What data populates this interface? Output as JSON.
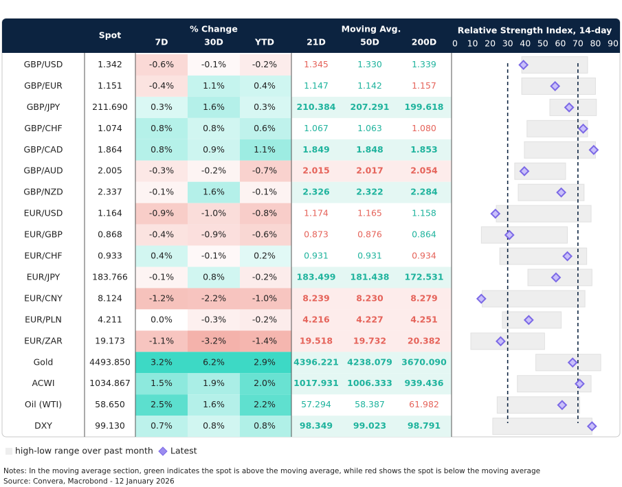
{
  "header": {
    "spot": "Spot",
    "pct_change": "% Change",
    "moving_avg": "Moving Avg.",
    "rsi": "Relative Strength Index, 14-day",
    "columns": [
      "7D",
      "30D",
      "YTD",
      "21D",
      "50D",
      "200D"
    ]
  },
  "rsi_axis": {
    "lim": [
      0,
      90
    ],
    "ticks": [
      0,
      10,
      20,
      30,
      40,
      50,
      60,
      70,
      80,
      90
    ],
    "thresholds": [
      30,
      70
    ]
  },
  "rows": [
    {
      "pair": "GBP/USD",
      "spot": "1.342",
      "change": [
        "-0.6%",
        "-0.1%",
        "-0.2%"
      ],
      "moving_avg": [
        "1.345",
        "1.330",
        "1.339"
      ],
      "rsi_low": 38,
      "rsi_high": 75.5,
      "rsi_latest": 39
    },
    {
      "pair": "GBP/EUR",
      "spot": "1.151",
      "change": [
        "-0.4%",
        "1.1%",
        "0.4%"
      ],
      "moving_avg": [
        "1.147",
        "1.142",
        "1.157"
      ],
      "rsi_low": 38,
      "rsi_high": 80,
      "rsi_latest": 57
    },
    {
      "pair": "GBP/JPY",
      "spot": "211.690",
      "change": [
        "0.3%",
        "1.6%",
        "0.3%"
      ],
      "moving_avg": [
        "210.384",
        "207.291",
        "199.618"
      ],
      "rsi_low": 54,
      "rsi_high": 80.5,
      "rsi_latest": 65
    },
    {
      "pair": "GBP/CHF",
      "spot": "1.074",
      "change": [
        "0.8%",
        "0.8%",
        "0.6%"
      ],
      "moving_avg": [
        "1.067",
        "1.063",
        "1.080"
      ],
      "rsi_low": 41,
      "rsi_high": 75.5,
      "rsi_latest": 73
    },
    {
      "pair": "GBP/CAD",
      "spot": "1.864",
      "change": [
        "0.8%",
        "0.9%",
        "1.1%"
      ],
      "moving_avg": [
        "1.849",
        "1.848",
        "1.853"
      ],
      "rsi_low": 39.5,
      "rsi_high": 80,
      "rsi_latest": 79
    },
    {
      "pair": "GBP/AUD",
      "spot": "2.005",
      "change": [
        "-0.3%",
        "-0.2%",
        "-0.7%"
      ],
      "moving_avg": [
        "2.015",
        "2.017",
        "2.054"
      ],
      "rsi_low": 34,
      "rsi_high": 63,
      "rsi_latest": 39.5
    },
    {
      "pair": "GBP/NZD",
      "spot": "2.337",
      "change": [
        "-0.1%",
        "1.6%",
        "-0.1%"
      ],
      "moving_avg": [
        "2.326",
        "2.322",
        "2.284"
      ],
      "rsi_low": 36,
      "rsi_high": 73.5,
      "rsi_latest": 60.5
    },
    {
      "pair": "EUR/USD",
      "spot": "1.164",
      "change": [
        "-0.9%",
        "-1.0%",
        "-0.8%"
      ],
      "moving_avg": [
        "1.174",
        "1.165",
        "1.158"
      ],
      "rsi_low": 23.5,
      "rsi_high": 77.5,
      "rsi_latest": 23
    },
    {
      "pair": "EUR/GBP",
      "spot": "0.868",
      "change": [
        "-0.4%",
        "-0.9%",
        "-0.6%"
      ],
      "moving_avg": [
        "0.873",
        "0.876",
        "0.864"
      ],
      "rsi_low": 15,
      "rsi_high": 64,
      "rsi_latest": 31
    },
    {
      "pair": "EUR/CHF",
      "spot": "0.933",
      "change": [
        "0.4%",
        "-0.1%",
        "0.2%"
      ],
      "moving_avg": [
        "0.931",
        "0.931",
        "0.934"
      ],
      "rsi_low": 25.5,
      "rsi_high": 75,
      "rsi_latest": 64
    },
    {
      "pair": "EUR/JPY",
      "spot": "183.766",
      "change": [
        "-0.1%",
        "0.8%",
        "-0.2%"
      ],
      "moving_avg": [
        "183.499",
        "181.438",
        "172.531"
      ],
      "rsi_low": 41.5,
      "rsi_high": 78,
      "rsi_latest": 57.5
    },
    {
      "pair": "EUR/CNY",
      "spot": "8.124",
      "change": [
        "-1.2%",
        "-2.2%",
        "-1.0%"
      ],
      "moving_avg": [
        "8.239",
        "8.230",
        "8.279"
      ],
      "rsi_low": 15.5,
      "rsi_high": 74,
      "rsi_latest": 15
    },
    {
      "pair": "EUR/PLN",
      "spot": "4.211",
      "change": [
        "0.0%",
        "-0.3%",
        "-0.2%"
      ],
      "moving_avg": [
        "4.216",
        "4.227",
        "4.251"
      ],
      "rsi_low": 27,
      "rsi_high": 60.5,
      "rsi_latest": 42
    },
    {
      "pair": "EUR/ZAR",
      "spot": "19.173",
      "change": [
        "-1.1%",
        "-3.2%",
        "-1.4%"
      ],
      "moving_avg": [
        "19.518",
        "19.732",
        "20.382"
      ],
      "rsi_low": 9,
      "rsi_high": 51,
      "rsi_latest": 26
    },
    {
      "pair": "Gold",
      "spot": "4493.850",
      "change": [
        "3.2%",
        "6.2%",
        "2.9%"
      ],
      "moving_avg": [
        "4396.221",
        "4238.079",
        "3670.090"
      ],
      "rsi_low": 46,
      "rsi_high": 83,
      "rsi_latest": 67
    },
    {
      "pair": "ACWI",
      "spot": "1034.867",
      "change": [
        "1.5%",
        "1.9%",
        "2.0%"
      ],
      "moving_avg": [
        "1017.931",
        "1006.333",
        "939.436"
      ],
      "rsi_low": 35.5,
      "rsi_high": 77.5,
      "rsi_latest": 71
    },
    {
      "pair": "Oil (WTI)",
      "spot": "58.650",
      "change": [
        "2.5%",
        "1.6%",
        "2.2%"
      ],
      "moving_avg": [
        "57.294",
        "58.387",
        "61.982"
      ],
      "rsi_low": 24,
      "rsi_high": 71,
      "rsi_latest": 61
    },
    {
      "pair": "DXY",
      "spot": "99.130",
      "change": [
        "0.7%",
        "0.8%",
        "0.8%"
      ],
      "moving_avg": [
        "98.349",
        "99.023",
        "98.791"
      ],
      "rsi_low": 21.5,
      "rsi_high": 78,
      "rsi_latest": 78
    }
  ],
  "legend": {
    "range": "high-low range over past month",
    "latest": "Latest"
  },
  "notes": [
    "Notes: In the moving average section, green indicates the spot is above the moving average, while red shows the spot is below the moving average",
    "Source: Convera, Macrobond - 12 January 2026"
  ]
}
